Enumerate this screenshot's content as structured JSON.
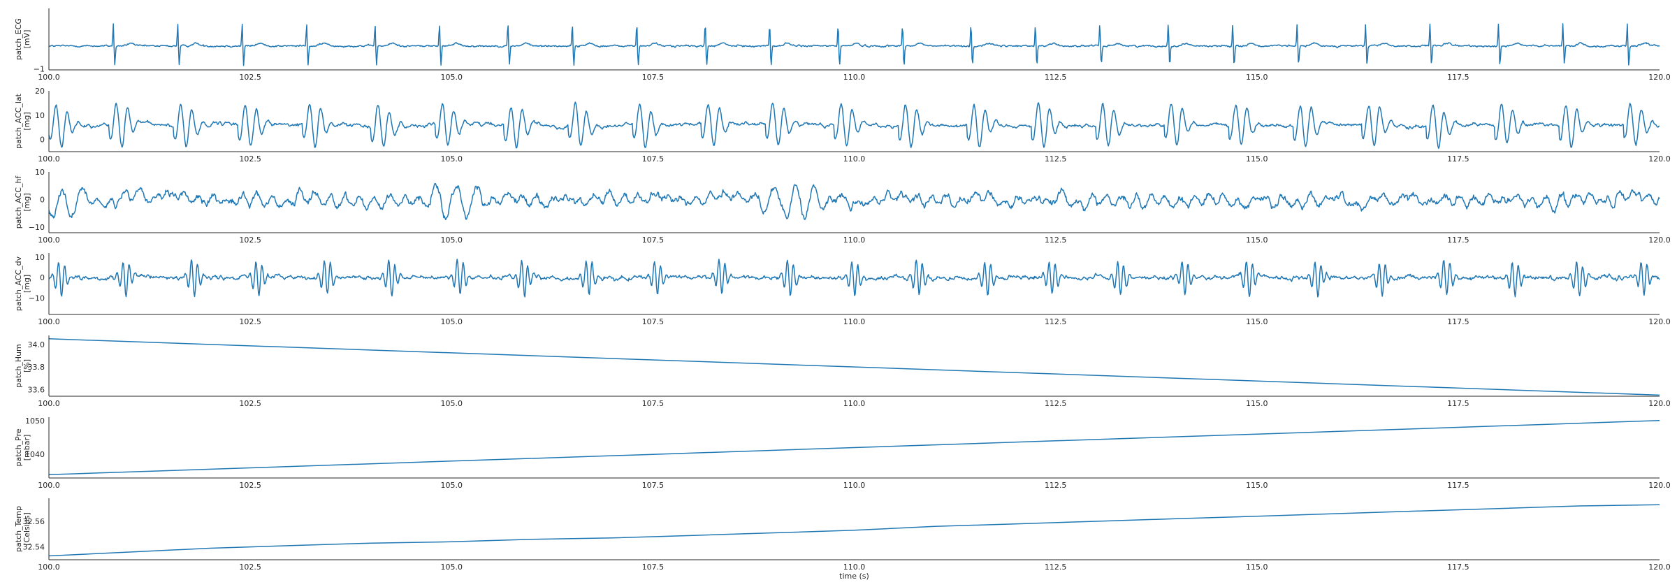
{
  "chart_data": [
    {
      "type": "line",
      "ylabel": [
        "patch_ECG",
        "[mV]"
      ],
      "ylim": [
        -1.05,
        1.65
      ],
      "yticks": [
        {
          "v": -1,
          "label": "−1"
        }
      ],
      "x_range": [
        100,
        120
      ],
      "signal": {
        "kind": "ecg",
        "beat_times": [
          100.8,
          101.6,
          102.4,
          103.2,
          104.05,
          104.85,
          105.7,
          106.5,
          107.3,
          108.15,
          108.95,
          109.8,
          110.6,
          111.45,
          112.25,
          113.05,
          113.9,
          114.7,
          115.5,
          116.35,
          117.15,
          118.0,
          118.8,
          119.6
        ],
        "peak": 1.0,
        "trough": -0.85,
        "noise": 0.08
      },
      "series": [
        {
          "name": "",
          "color": "#1f77b4"
        }
      ]
    },
    {
      "type": "line",
      "ylabel": [
        "patch_ACC_lat",
        "[mg]"
      ],
      "ylim": [
        -5,
        20
      ],
      "yticks": [
        {
          "v": 20,
          "label": "20"
        },
        {
          "v": 10,
          "label": "10"
        },
        {
          "v": 0,
          "label": "0"
        }
      ],
      "x_range": [
        100,
        120
      ],
      "signal": {
        "kind": "burst",
        "beat_times": [
          100.05,
          100.8,
          101.6,
          102.4,
          103.2,
          104.05,
          104.85,
          105.7,
          106.5,
          107.3,
          108.15,
          108.95,
          109.8,
          110.6,
          111.45,
          112.25,
          113.05,
          113.9,
          114.7,
          115.5,
          116.35,
          117.15,
          118.0,
          118.8,
          119.6
        ],
        "baseline": 6,
        "amp": 9,
        "noise": 1.2
      },
      "series": [
        {
          "name": "",
          "color": "#1f77b4"
        }
      ]
    },
    {
      "type": "line",
      "ylabel": [
        "patch_ACC_hf",
        "[mg]"
      ],
      "ylim": [
        -12,
        10
      ],
      "yticks": [
        {
          "v": 10,
          "label": "10"
        },
        {
          "v": 0,
          "label": "0"
        },
        {
          "v": -10,
          "label": "−10"
        }
      ],
      "x_range": [
        100,
        120
      ],
      "signal": {
        "kind": "noise",
        "baseline": 0,
        "amp": 3.5,
        "bursts": [
          100.1,
          105.0,
          109.2
        ],
        "burst_amp": 7
      },
      "series": [
        {
          "name": "",
          "color": "#1f77b4"
        }
      ]
    },
    {
      "type": "line",
      "ylabel": [
        "patch_ACC_dv",
        "[mg]"
      ],
      "ylim": [
        -18,
        12
      ],
      "yticks": [
        {
          "v": 10,
          "label": "10"
        },
        {
          "v": 0,
          "label": "0"
        },
        {
          "v": -10,
          "label": "−10"
        }
      ],
      "x_range": [
        100,
        120
      ],
      "signal": {
        "kind": "spiky",
        "beat_times": [
          100.1,
          100.9,
          101.75,
          102.55,
          103.4,
          104.2,
          105.05,
          105.85,
          106.65,
          107.5,
          108.3,
          109.15,
          109.95,
          110.75,
          111.6,
          112.4,
          113.25,
          114.05,
          114.85,
          115.7,
          116.5,
          117.3,
          118.15,
          118.95,
          119.75
        ],
        "baseline": 0,
        "amp": 4,
        "noise": 1.5
      },
      "series": [
        {
          "name": "",
          "color": "#1f77b4"
        }
      ]
    },
    {
      "type": "line",
      "ylabel": [
        "patch_Hum",
        "[%]"
      ],
      "ylim": [
        33.54,
        34.08
      ],
      "yticks": [
        {
          "v": 34.0,
          "label": "34.0"
        },
        {
          "v": 33.8,
          "label": "33.8"
        },
        {
          "v": 33.6,
          "label": "33.6"
        }
      ],
      "x_range": [
        100,
        120
      ],
      "x": [
        100,
        120
      ],
      "y": [
        34.05,
        33.55
      ],
      "series": [
        {
          "name": "",
          "color": "#1f77b4"
        }
      ]
    },
    {
      "type": "line",
      "ylabel": [
        "patch_Pre",
        "[mbar]"
      ],
      "ylim": [
        1033,
        1051
      ],
      "yticks": [
        {
          "v": 1050,
          "label": "1050"
        },
        {
          "v": 1040,
          "label": "1040"
        }
      ],
      "x_range": [
        100,
        120
      ],
      "x": [
        100,
        102.5,
        105,
        107.5,
        110,
        112.5,
        115,
        117.5,
        120
      ],
      "y": [
        1034,
        1036,
        1038,
        1040,
        1042,
        1044,
        1046,
        1048,
        1050
      ],
      "series": [
        {
          "name": "",
          "color": "#1f77b4"
        }
      ]
    },
    {
      "type": "line",
      "ylabel": [
        "patch_Temp",
        "[Celsius]"
      ],
      "ylim": [
        32.53,
        32.578
      ],
      "yticks": [
        {
          "v": 32.56,
          "label": "32.56"
        },
        {
          "v": 32.54,
          "label": "32.54"
        }
      ],
      "x_range": [
        100,
        120
      ],
      "x": [
        100,
        101,
        102,
        103,
        104,
        105,
        106,
        107,
        108,
        109,
        110,
        111,
        112,
        113,
        114,
        115,
        116,
        117,
        118,
        119,
        120
      ],
      "y": [
        32.533,
        32.536,
        32.539,
        32.541,
        32.543,
        32.544,
        32.546,
        32.547,
        32.549,
        32.551,
        32.553,
        32.556,
        32.558,
        32.56,
        32.562,
        32.564,
        32.566,
        32.568,
        32.57,
        32.572,
        32.573
      ],
      "series": [
        {
          "name": "",
          "color": "#1f77b4"
        }
      ]
    }
  ],
  "xticks": [
    {
      "v": 100,
      "label": "100.0"
    },
    {
      "v": 102.5,
      "label": "102.5"
    },
    {
      "v": 105,
      "label": "105.0"
    },
    {
      "v": 107.5,
      "label": "107.5"
    },
    {
      "v": 110,
      "label": "110.0"
    },
    {
      "v": 112.5,
      "label": "112.5"
    },
    {
      "v": 115,
      "label": "115.0"
    },
    {
      "v": 117.5,
      "label": "117.5"
    },
    {
      "v": 120,
      "label": "120.0"
    }
  ],
  "xlabel": "time (s)",
  "colors": {
    "line": "#1f77b4",
    "axis": "#262626"
  }
}
